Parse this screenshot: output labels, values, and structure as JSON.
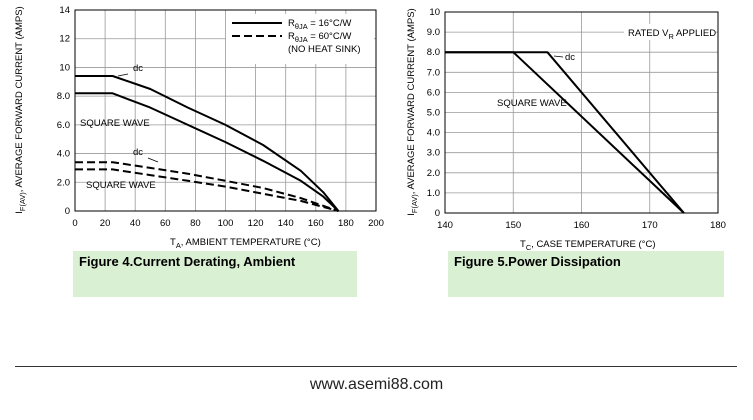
{
  "chart_data": [
    {
      "type": "line",
      "figure_caption": "Figure 4.Current  Derating, Ambient",
      "xlabel_main": "T",
      "xlabel_sub": "A",
      "xlabel_rest": ", AMBIENT TEMPERATURE (°C)",
      "ylabel_main": "I",
      "ylabel_sub": "F(AV)",
      "ylabel_rest": ", AVERAGE FORWARD CURRENT (AMPS)",
      "xlim": [
        0,
        200
      ],
      "ylim": [
        0,
        14
      ],
      "xticks": [
        "0",
        "20",
        "40",
        "60",
        "80",
        "100",
        "120",
        "140",
        "160",
        "180",
        "200"
      ],
      "yticks": [
        "0",
        "2.0",
        "4.0",
        "6.0",
        "8.0",
        "10",
        "12",
        "14"
      ],
      "grid": true,
      "legend": [
        {
          "style": "solid",
          "label_main": "R",
          "label_sub": "θJA",
          "label_rest": " = 16°C/W"
        },
        {
          "style": "dashed",
          "label_main": "R",
          "label_sub": "θJA",
          "label_rest": " = 60°C/W"
        },
        {
          "style": "none",
          "label_main": "(NO HEAT SINK)",
          "label_sub": "",
          "label_rest": ""
        }
      ],
      "series": [
        {
          "style": "solid",
          "label": "dc",
          "x": [
            0,
            25,
            50,
            75,
            100,
            125,
            150,
            165,
            175
          ],
          "y": [
            9.4,
            9.4,
            8.5,
            7.2,
            6.0,
            4.6,
            2.8,
            1.3,
            0
          ]
        },
        {
          "style": "solid",
          "label": "SQUARE WAVE",
          "x": [
            0,
            25,
            50,
            75,
            100,
            125,
            150,
            165,
            175
          ],
          "y": [
            8.2,
            8.2,
            7.2,
            6.0,
            4.8,
            3.5,
            2.1,
            1.0,
            0
          ]
        },
        {
          "style": "dashed",
          "label": "dc",
          "x": [
            0,
            25,
            50,
            75,
            100,
            125,
            150,
            175
          ],
          "y": [
            3.4,
            3.4,
            3.0,
            2.6,
            2.1,
            1.6,
            0.9,
            0
          ]
        },
        {
          "style": "dashed",
          "label": "SQUARE WAVE",
          "x": [
            0,
            25,
            50,
            75,
            100,
            125,
            150,
            175
          ],
          "y": [
            2.9,
            2.9,
            2.5,
            2.1,
            1.7,
            1.2,
            0.7,
            0
          ]
        }
      ]
    },
    {
      "type": "line",
      "figure_caption": "Figure 5.Power  Dissipation",
      "xlabel_main": "T",
      "xlabel_sub": "C",
      "xlabel_rest": ", CASE TEMPERATURE (°C)",
      "ylabel_main": "I",
      "ylabel_sub": "F(AV)",
      "ylabel_rest": ", AVERAGE FORWARD CURRENT (AMPS)",
      "xlim": [
        140,
        180
      ],
      "ylim": [
        0,
        10
      ],
      "xticks": [
        "140",
        "150",
        "160",
        "170",
        "180"
      ],
      "yticks": [
        "0",
        "1.0",
        "2.0",
        "3.0",
        "4.0",
        "5.0",
        "6.0",
        "7.0",
        "8.0",
        "9.0",
        "10"
      ],
      "grid": true,
      "annotation_main": "RATED V",
      "annotation_sub": "R",
      "annotation_rest": " APPLIED",
      "series": [
        {
          "style": "solid",
          "label": "dc",
          "x": [
            140,
            155,
            175
          ],
          "y": [
            8.0,
            8.0,
            0
          ]
        },
        {
          "style": "solid",
          "label": "SQUARE WAVE",
          "x": [
            140,
            150,
            175
          ],
          "y": [
            8.0,
            8.0,
            0
          ]
        }
      ]
    }
  ],
  "footer": {
    "website": "www.asemi88.com"
  }
}
